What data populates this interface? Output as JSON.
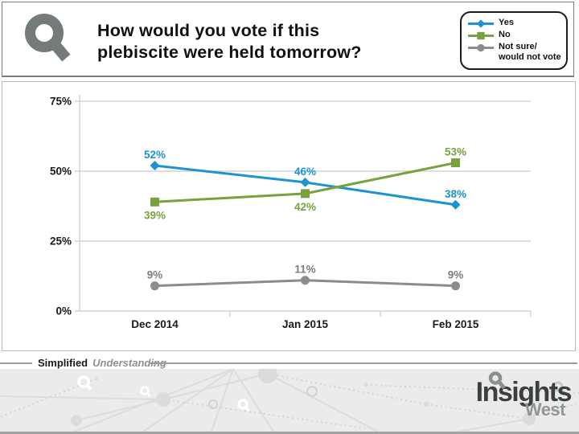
{
  "header": {
    "title": "How would you vote if this\nplebiscite were held tomorrow?",
    "logo_icon": "magnifier-icon"
  },
  "legend": {
    "items": [
      {
        "label": "Yes",
        "marker": "diamond",
        "color": "#1E93D1"
      },
      {
        "label": "No",
        "marker": "square",
        "color": "#77A23F"
      },
      {
        "label": "Not sure/\nwould not vote",
        "marker": "circle",
        "color": "#8C8C8C"
      }
    ]
  },
  "chart_data": {
    "type": "line",
    "title": "How would you vote if this plebiscite were held tomorrow?",
    "categories": [
      "Dec 2014",
      "Jan 2015",
      "Feb 2015"
    ],
    "series": [
      {
        "name": "Yes",
        "values": [
          52,
          46,
          38
        ],
        "color": "#1E93D1",
        "marker": "diamond",
        "label_sides": [
          "above",
          "above",
          "above"
        ]
      },
      {
        "name": "No",
        "values": [
          39,
          42,
          53
        ],
        "color": "#77A23F",
        "marker": "square",
        "label_sides": [
          "below",
          "below",
          "above"
        ]
      },
      {
        "name": "Not sure/would not vote",
        "values": [
          9,
          11,
          9
        ],
        "color": "#8C8C8C",
        "label_color": "#7C7C7C",
        "marker": "circle",
        "label_sides": [
          "above",
          "above",
          "above"
        ]
      }
    ],
    "y_ticks": [
      0,
      25,
      50,
      75
    ],
    "y_tick_labels": [
      "0%",
      "25%",
      "50%",
      "75%"
    ],
    "ylim": [
      0,
      80
    ],
    "grid": true,
    "legend_position": "top-right",
    "data_label_suffix": "%"
  },
  "footer": {
    "tagline_bold": "Simplified",
    "tagline_light": "Understanding",
    "brand_name": "Insights",
    "brand_sub": "West"
  },
  "colors": {
    "yes_blue": "#1E93D1",
    "no_green": "#77A23F",
    "notsure_gray": "#8C8C8C",
    "gridline": "#C9C9C9",
    "logo_gray": "#747C79",
    "brand_dark": "#3B403E",
    "brand_gray": "#8F9794"
  }
}
